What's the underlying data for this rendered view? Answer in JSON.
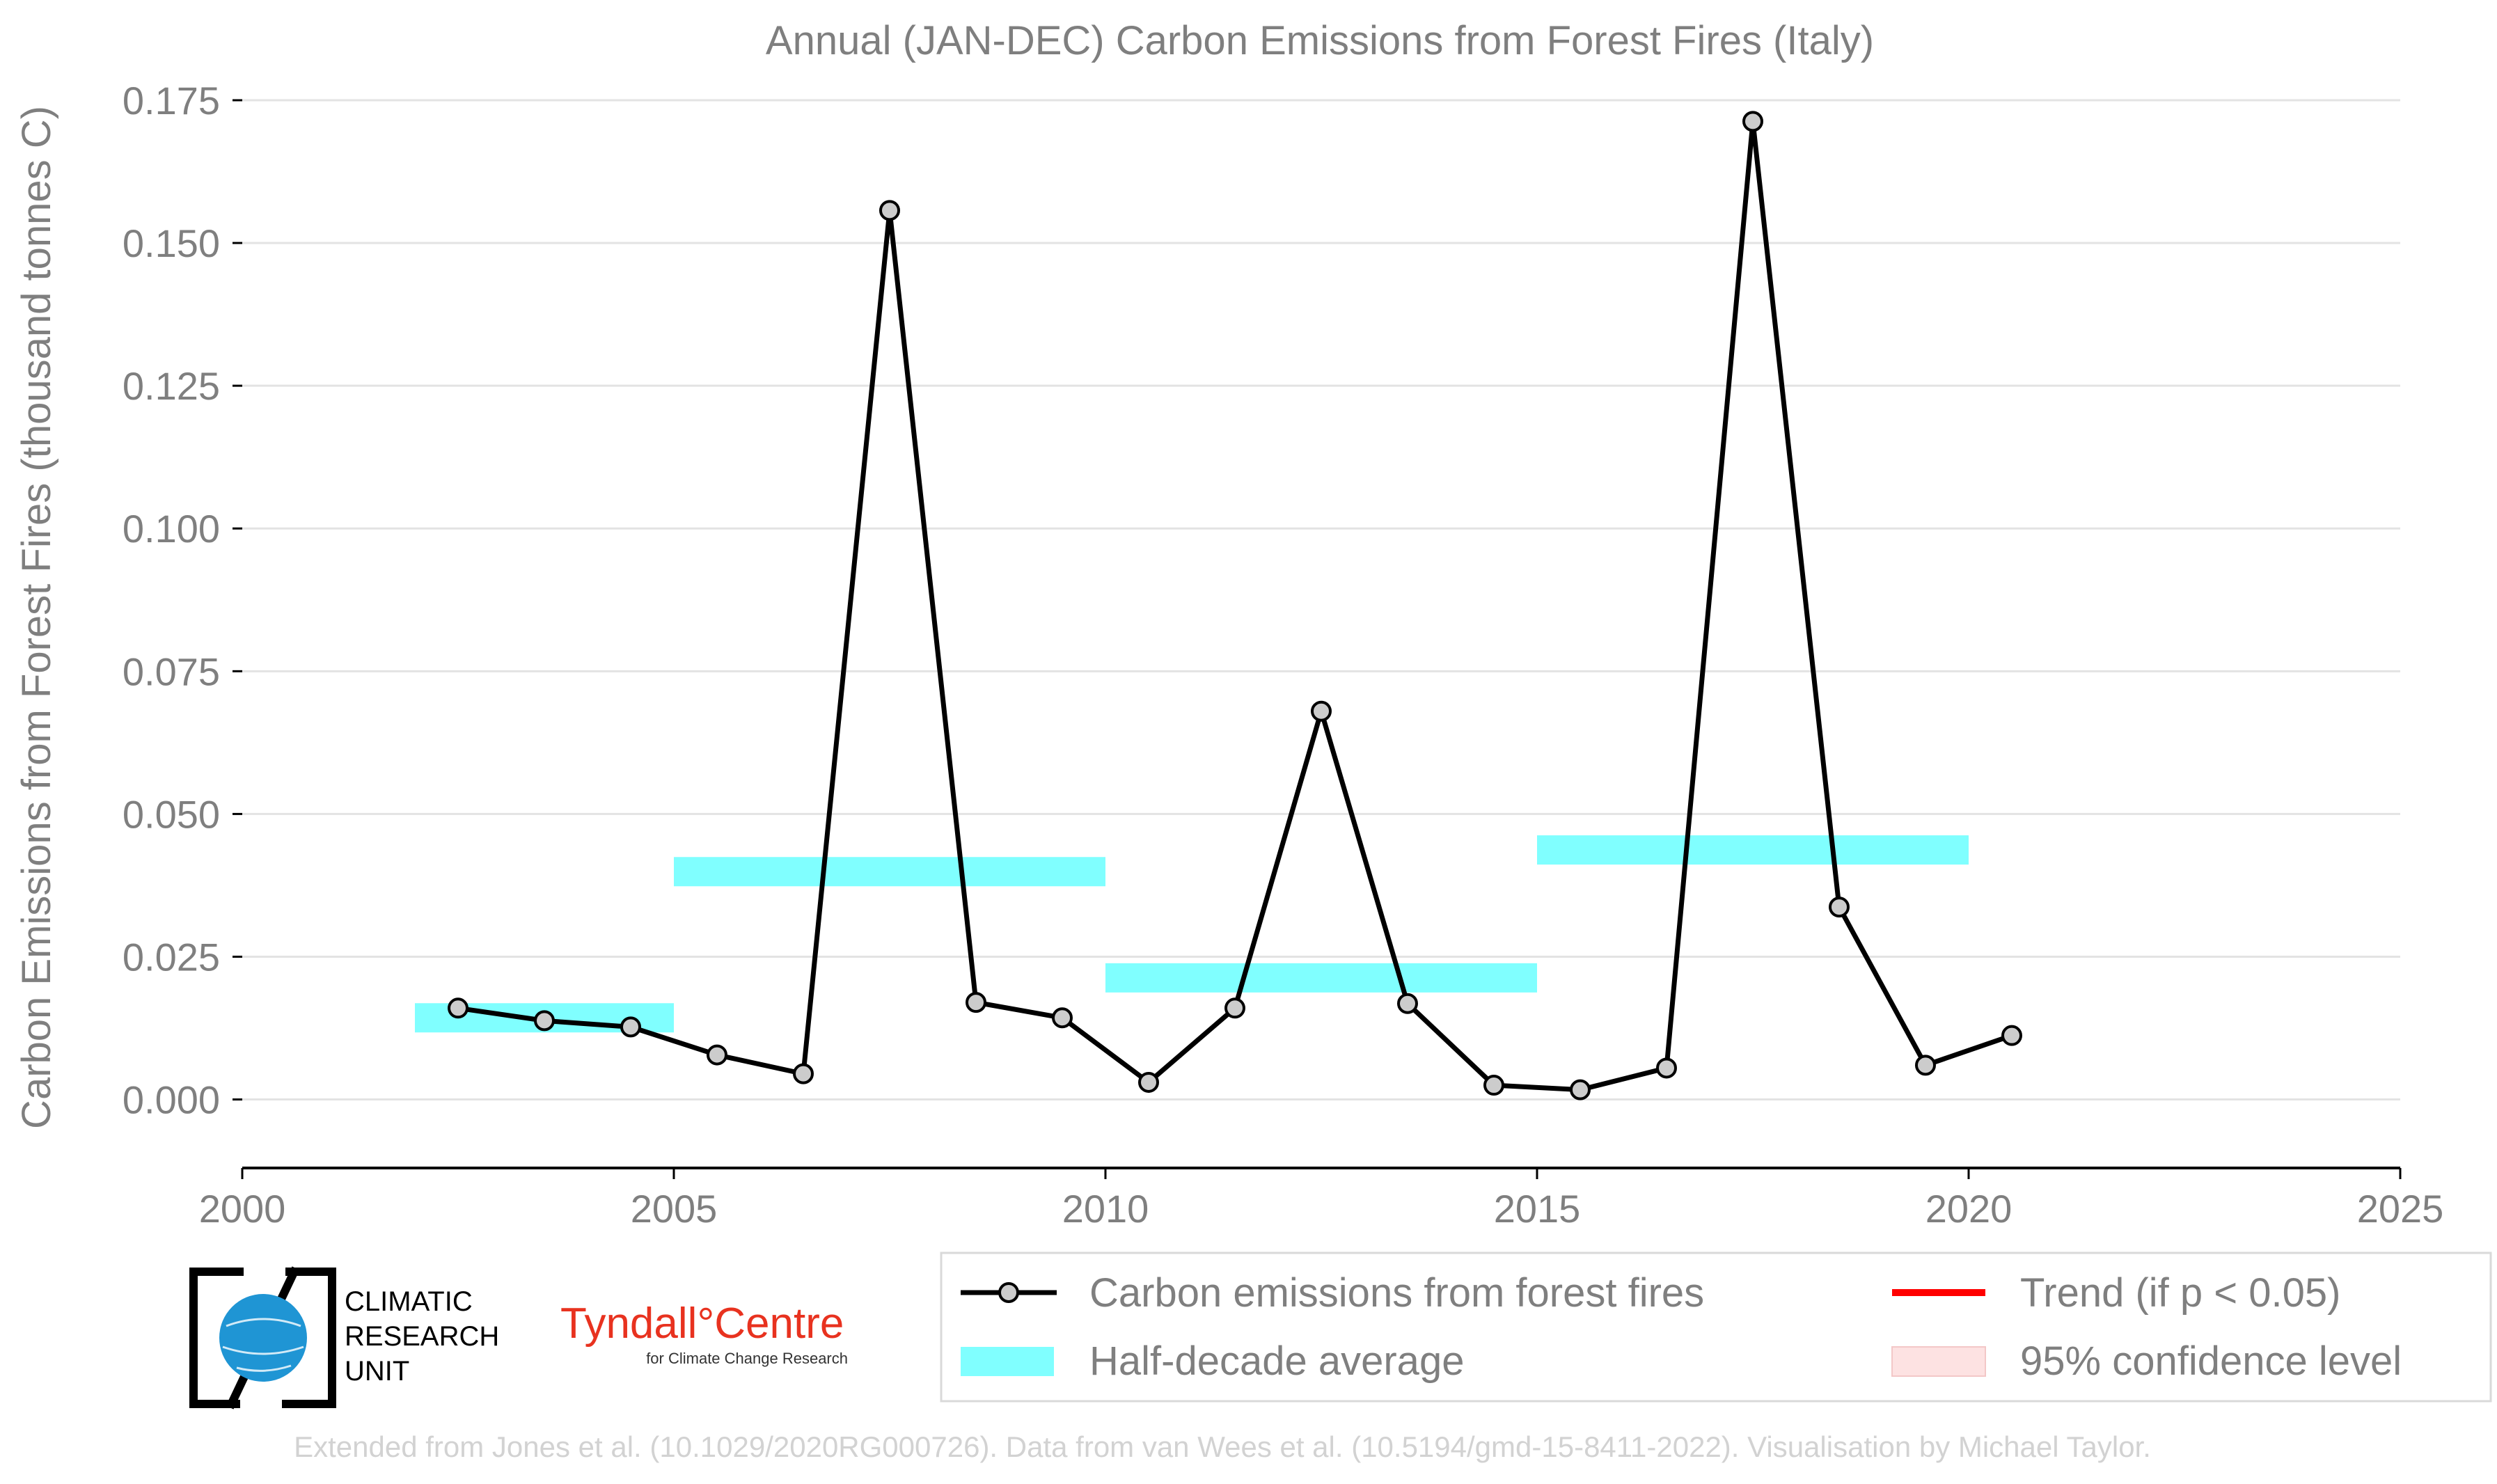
{
  "chart_data": {
    "type": "line",
    "title": "Annual (JAN-DEC) Carbon Emissions from Forest Fires (Italy)",
    "xlabel": "",
    "ylabel": "Carbon Emissions from Forest Fires (thousand tonnes C)",
    "xlim": [
      2000,
      2025
    ],
    "ylim": [
      -0.012,
      0.175
    ],
    "x_ticks": [
      "2000",
      "2005",
      "2010",
      "2015",
      "2020",
      "2025"
    ],
    "y_ticks": [
      "0.000",
      "0.025",
      "0.050",
      "0.075",
      "0.100",
      "0.125",
      "0.150",
      "0.175"
    ],
    "grid": "horizontal",
    "series": [
      {
        "name": "Carbon emissions from forest fires",
        "color": "#000000",
        "marker_color": "#cccccc",
        "x": [
          2002.5,
          2003.5,
          2004.5,
          2005.5,
          2006.5,
          2007.5,
          2008.5,
          2009.5,
          2010.5,
          2011.5,
          2012.5,
          2013.5,
          2014.5,
          2015.5,
          2016.5,
          2017.5,
          2018.5,
          2019.5,
          2020.5
        ],
        "y": [
          0.016,
          0.0138,
          0.0127,
          0.0078,
          0.0045,
          0.1557,
          0.017,
          0.0143,
          0.003,
          0.016,
          0.068,
          0.0168,
          0.0025,
          0.0017,
          0.0055,
          0.1713,
          0.0337,
          0.006,
          0.0112
        ]
      }
    ],
    "half_decade_average": {
      "name": "Half-decade average",
      "color": "#80ffff",
      "segments": [
        {
          "x0": 2002,
          "x1": 2005,
          "y": 0.0143
        },
        {
          "x0": 2005,
          "x1": 2010,
          "y": 0.0399
        },
        {
          "x0": 2010,
          "x1": 2015,
          "y": 0.0213
        },
        {
          "x0": 2015,
          "x1": 2020,
          "y": 0.0437
        }
      ]
    },
    "legend": {
      "placement": "bottom-right",
      "entries": [
        {
          "label": "Carbon emissions from forest fires",
          "kind": "line-marker",
          "color": "#000000"
        },
        {
          "label": "Trend (if p < 0.05)",
          "kind": "line",
          "color": "#ff0000"
        },
        {
          "label": "Half-decade average",
          "kind": "patch",
          "color": "#80ffff"
        },
        {
          "label": "95% confidence level",
          "kind": "patch",
          "color": "#fde2e2"
        }
      ]
    }
  },
  "logos": {
    "cru_lines": [
      "CLIMATIC",
      "RESEARCH",
      "UNIT"
    ],
    "tyndall_main": "Tyndall°Centre",
    "tyndall_sub": "for Climate Change Research"
  },
  "credit": "Extended from Jones et al. (10.1029/2020RG000726). Data from van Wees et al. (10.5194/gmd-15-8411-2022). Visualisation by Michael Taylor."
}
